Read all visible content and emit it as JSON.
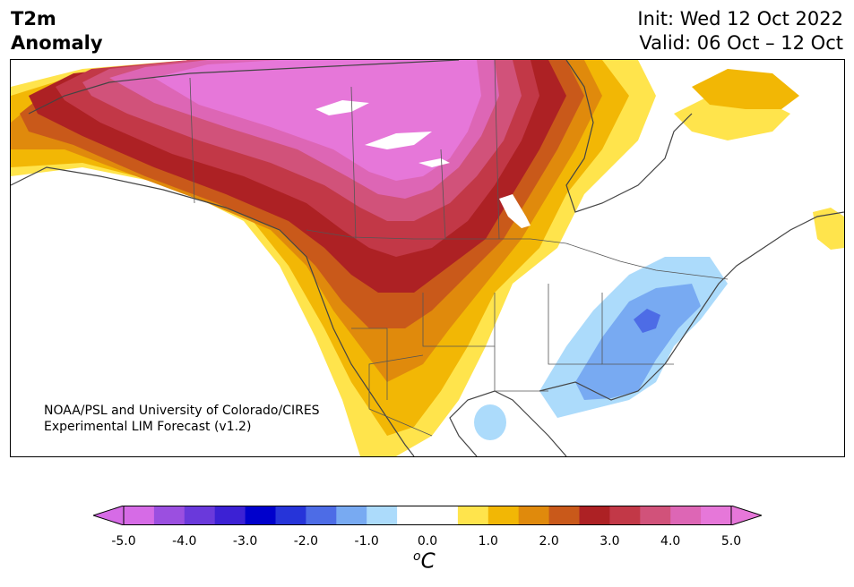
{
  "title": {
    "left_line1": "T2m",
    "left_line2": "Anomaly",
    "init": "Init: Wed 12 Oct 2022",
    "valid": "Valid: 06 Oct – 12 Oct"
  },
  "credit": {
    "line1": "NOAA/PSL and University of Colorado/CIRES",
    "line2": "Experimental LIM Forecast (v1.2)"
  },
  "colorbar": {
    "ticks": [
      "-5.0",
      "-4.0",
      "-3.0",
      "-2.0",
      "-1.0",
      "0.0",
      "1.0",
      "2.0",
      "3.0",
      "4.0",
      "5.0"
    ],
    "unit_super": "o",
    "unit": "C",
    "colors": [
      "#d66be6",
      "#9b4fe0",
      "#6a39db",
      "#3c21d4",
      "#0000cc",
      "#2634d9",
      "#4d6ce6",
      "#78aaf2",
      "#acdbfb",
      "#ffffff",
      "#ffffff",
      "#ffe44c",
      "#f2b705",
      "#e08a0c",
      "#c9591a",
      "#ad2124",
      "#c23847",
      "#d1527a",
      "#dd66b5",
      "#e677d9"
    ],
    "under_color": "#d66be6",
    "over_color": "#e677d9"
  }
}
